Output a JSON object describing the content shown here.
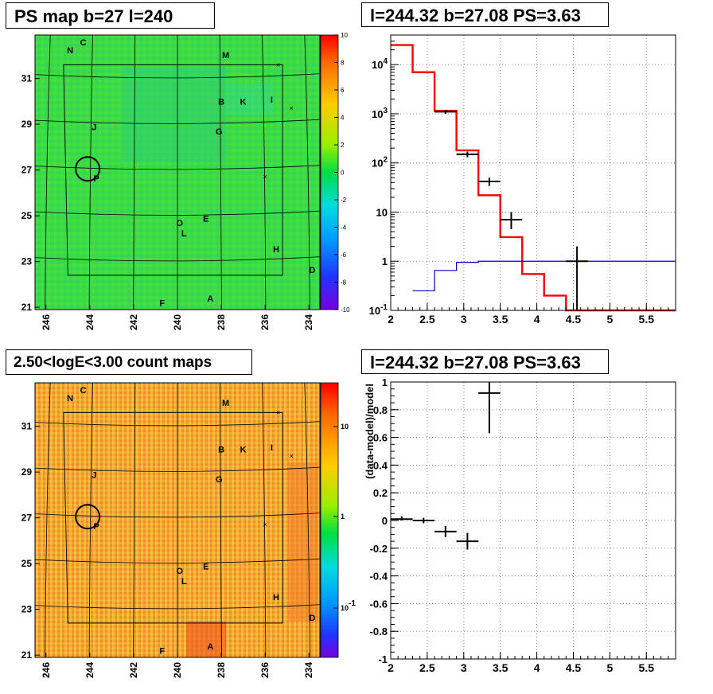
{
  "titles": {
    "ps_map": "PS map b=27 l=240",
    "spectrum": "l=244.32 b=27.08 PS=3.63",
    "count_map": "2.50<logE<3.00 count maps",
    "residual": "l=244.32 b=27.08 PS=3.63"
  },
  "map_axes": {
    "x_ticks": [
      "246",
      "244",
      "242",
      "240",
      "238",
      "236",
      "234"
    ],
    "y_ticks": [
      "31",
      "29",
      "27",
      "25",
      "23",
      "21"
    ]
  },
  "map_labels": [
    "N",
    "C",
    "M",
    "B",
    "K",
    "I",
    "J",
    "G",
    "P",
    "O",
    "E",
    "L",
    "H",
    "D",
    "F",
    "A"
  ],
  "colors": {
    "ps_map_background": "#33dd33",
    "count_map_background": "#f0a030",
    "model_line": "#ff0000",
    "background_model_line": "#0000cc",
    "data_points": "#000000"
  },
  "chart_data": [
    {
      "type": "heatmap",
      "title": "PS map b=27 l=240",
      "xlim": [
        246.5,
        233.5
      ],
      "ylim": [
        20.9,
        32.9
      ],
      "colorbar": {
        "min": -10,
        "max": 10,
        "ticks": [
          "10",
          "8",
          "6",
          "4",
          "2",
          "0",
          "-2",
          "-4",
          "-6",
          "-8",
          "-10"
        ]
      }
    },
    {
      "type": "line",
      "title": "l=244.32 b=27.08 PS=3.63",
      "y_scale": "log",
      "xlim": [
        2,
        5.9
      ],
      "ylim": [
        0.1,
        40000
      ],
      "x_ticks": [
        "2",
        "2.5",
        "3",
        "3.5",
        "4",
        "4.5",
        "5",
        "5.5"
      ],
      "y_ticks": [
        "10^4",
        "10^3",
        "10^2",
        "10",
        "1",
        "10^-1"
      ],
      "series": [
        {
          "name": "",
          "color": "#ff0000",
          "style": "step",
          "edges": [
            2.0,
            2.3,
            2.6,
            2.9,
            3.2,
            3.5,
            3.8,
            4.1,
            4.4,
            4.7,
            5.0,
            5.9
          ],
          "values": [
            25000,
            7000,
            1150,
            180,
            22,
            3.1,
            0.55,
            0.2,
            0.1,
            0.1,
            0.1
          ]
        },
        {
          "name": "",
          "color": "#0000cc",
          "style": "step",
          "edges": [
            2.3,
            2.6,
            2.9,
            3.2,
            3.5,
            3.8,
            4.1,
            4.4,
            4.7,
            5.0,
            5.9
          ],
          "values": [
            0.25,
            0.65,
            0.95,
            1.0,
            1.0,
            1.0,
            1.0,
            1.0,
            1.0,
            1.0
          ]
        },
        {
          "name": "",
          "color": "#000000",
          "style": "errorbar",
          "points": [
            {
              "x": 2.75,
              "y": 1100,
              "xerr": 0.15,
              "ylo": 1000,
              "yhi": 1200
            },
            {
              "x": 3.05,
              "y": 150,
              "xerr": 0.15,
              "ylo": 130,
              "yhi": 170
            },
            {
              "x": 3.35,
              "y": 42,
              "xerr": 0.15,
              "ylo": 34,
              "yhi": 50
            },
            {
              "x": 3.65,
              "y": 7,
              "xerr": 0.15,
              "ylo": 4.5,
              "yhi": 10
            },
            {
              "x": 4.55,
              "y": 1,
              "xerr": 0.15,
              "ylo": 0.1,
              "yhi": 2
            }
          ]
        }
      ]
    },
    {
      "type": "heatmap",
      "title": "2.50<logE<3.00 count maps",
      "xlim": [
        246.5,
        233.5
      ],
      "ylim": [
        20.9,
        32.9
      ],
      "colorbar": {
        "scale": "log",
        "ticks": [
          "10",
          "1",
          "10^-1"
        ]
      }
    },
    {
      "type": "scatter",
      "title": "l=244.32 b=27.08 PS=3.63",
      "ylabel": "(data-model)/model",
      "xlim": [
        2,
        5.9
      ],
      "ylim": [
        -1,
        1
      ],
      "x_ticks": [
        "2",
        "2.5",
        "3",
        "3.5",
        "4",
        "4.5",
        "5",
        "5.5"
      ],
      "y_ticks": [
        "1",
        "0.8",
        "0.6",
        "0.4",
        "0.2",
        "0",
        "-0.2",
        "-0.4",
        "-0.6",
        "-0.8",
        "-1"
      ],
      "points": [
        {
          "x": 2.15,
          "y": 0.01,
          "xerr": 0.15,
          "ylo": 0.0,
          "yhi": 0.03
        },
        {
          "x": 2.45,
          "y": 0.0,
          "xerr": 0.15,
          "ylo": -0.02,
          "yhi": 0.02
        },
        {
          "x": 2.75,
          "y": -0.08,
          "xerr": 0.15,
          "ylo": -0.12,
          "yhi": -0.04
        },
        {
          "x": 3.05,
          "y": -0.15,
          "xerr": 0.15,
          "ylo": -0.21,
          "yhi": -0.09
        },
        {
          "x": 3.35,
          "y": 0.92,
          "xerr": 0.15,
          "ylo": 0.63,
          "yhi": 1.0
        }
      ]
    }
  ]
}
